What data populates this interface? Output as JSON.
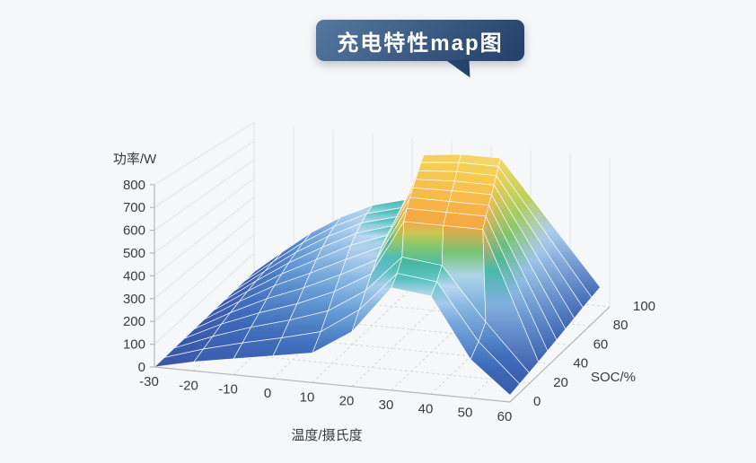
{
  "title": {
    "text": "充电特性map图"
  },
  "colors": {
    "background": "#f6f7f8",
    "bubble_gradient_start": "#56789f",
    "bubble_gradient_end": "#24426a",
    "bubble_text": "#ffffff",
    "axis_line": "#b3b6bb",
    "tick_text": "#3a3a3a",
    "grid_line": "#e3e5e9",
    "ground_dash_line": "#d6d8dc",
    "mesh_line": "#ffffff"
  },
  "chart_data": {
    "type": "surface",
    "title": "充电特性map图",
    "xlabel": "温度/摄氏度",
    "ylabel": "SOC/%",
    "zlabel": "功率/W",
    "x_temperature": [
      -30,
      -20,
      -10,
      0,
      10,
      20,
      30,
      40,
      50,
      60
    ],
    "y_soc": [
      0,
      10,
      20,
      30,
      40,
      50,
      60,
      70,
      80,
      90,
      100
    ],
    "x_ticks": [
      -30,
      -20,
      -10,
      0,
      10,
      20,
      30,
      40,
      50,
      60
    ],
    "y_ticks": [
      0,
      20,
      40,
      60,
      80,
      100
    ],
    "z_ticks": [
      0,
      100,
      200,
      300,
      400,
      500,
      600,
      700,
      800
    ],
    "zlim": [
      0,
      800
    ],
    "grid": true,
    "legend": false,
    "z_power": [
      [
        0,
        40,
        70,
        100,
        130,
        240,
        450,
        430,
        170,
        30
      ],
      [
        0,
        55,
        100,
        140,
        185,
        300,
        480,
        460,
        210,
        38
      ],
      [
        0,
        70,
        130,
        180,
        240,
        350,
        520,
        500,
        260,
        46
      ],
      [
        0,
        85,
        155,
        215,
        290,
        390,
        650,
        650,
        650,
        54
      ],
      [
        0,
        95,
        180,
        250,
        330,
        420,
        680,
        680,
        680,
        62
      ],
      [
        0,
        105,
        200,
        280,
        365,
        445,
        700,
        700,
        700,
        70
      ],
      [
        0,
        112,
        215,
        305,
        395,
        462,
        715,
        720,
        720,
        78
      ],
      [
        0,
        118,
        228,
        325,
        415,
        472,
        725,
        735,
        735,
        86
      ],
      [
        0,
        122,
        238,
        340,
        428,
        480,
        735,
        750,
        750,
        94
      ],
      [
        0,
        125,
        245,
        350,
        436,
        488,
        745,
        765,
        765,
        100
      ],
      [
        0,
        127,
        250,
        355,
        440,
        492,
        750,
        775,
        775,
        105
      ]
    ],
    "color_stops": [
      [
        0,
        "#3a55a6"
      ],
      [
        130,
        "#3e6cba"
      ],
      [
        260,
        "#649bd4"
      ],
      [
        350,
        "#8fbbe4"
      ],
      [
        430,
        "#bcd8f0"
      ],
      [
        468,
        "#55c1c0"
      ],
      [
        515,
        "#45b69c"
      ],
      [
        560,
        "#7fc66d"
      ],
      [
        605,
        "#bed05b"
      ],
      [
        645,
        "#f4a440"
      ],
      [
        700,
        "#f7b64a"
      ],
      [
        755,
        "#f6cf53"
      ],
      [
        800,
        "#f2e288"
      ]
    ]
  }
}
